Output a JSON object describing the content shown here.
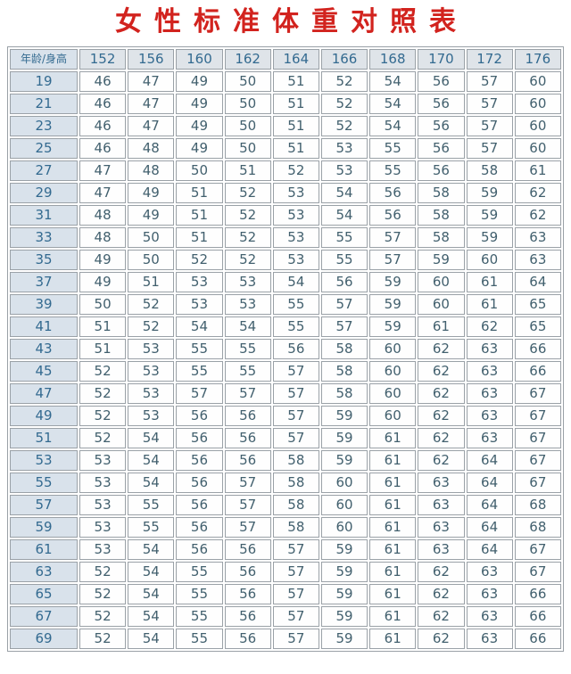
{
  "title": "女性标准体重对照表",
  "colors": {
    "page_bg": "#ffffff",
    "title": "#d2231e",
    "header_bg": "#dfe4e9",
    "age_col_bg": "#d9e2eb",
    "header_text": "#336a90",
    "cell_bg": "#fefefe",
    "cell_text": "#42606e",
    "border": "#9aa1a7"
  },
  "chart_data": {
    "type": "table",
    "title": "女性标准体重对照表",
    "corner_label": "年龄/身高",
    "x_axis_meaning": "height (cm)",
    "y_axis_meaning": "age (years)",
    "cell_meaning": "standard weight (kg)",
    "columns": [
      "152",
      "156",
      "160",
      "162",
      "164",
      "166",
      "168",
      "170",
      "172",
      "176"
    ],
    "rows": [
      {
        "age": "19",
        "values": [
          46,
          47,
          49,
          50,
          51,
          52,
          54,
          56,
          57,
          60
        ]
      },
      {
        "age": "21",
        "values": [
          46,
          47,
          49,
          50,
          51,
          52,
          54,
          56,
          57,
          60
        ]
      },
      {
        "age": "23",
        "values": [
          46,
          47,
          49,
          50,
          51,
          52,
          54,
          56,
          57,
          60
        ]
      },
      {
        "age": "25",
        "values": [
          46,
          48,
          49,
          50,
          51,
          53,
          55,
          56,
          57,
          60
        ]
      },
      {
        "age": "27",
        "values": [
          47,
          48,
          50,
          51,
          52,
          53,
          55,
          56,
          58,
          61
        ]
      },
      {
        "age": "29",
        "values": [
          47,
          49,
          51,
          52,
          53,
          54,
          56,
          58,
          59,
          62
        ]
      },
      {
        "age": "31",
        "values": [
          48,
          49,
          51,
          52,
          53,
          54,
          56,
          58,
          59,
          62
        ]
      },
      {
        "age": "33",
        "values": [
          48,
          50,
          51,
          52,
          53,
          55,
          57,
          58,
          59,
          63
        ]
      },
      {
        "age": "35",
        "values": [
          49,
          50,
          52,
          52,
          53,
          55,
          57,
          59,
          60,
          63
        ]
      },
      {
        "age": "37",
        "values": [
          49,
          51,
          53,
          53,
          54,
          56,
          59,
          60,
          61,
          64
        ]
      },
      {
        "age": "39",
        "values": [
          50,
          52,
          53,
          53,
          55,
          57,
          59,
          60,
          61,
          65
        ]
      },
      {
        "age": "41",
        "values": [
          51,
          52,
          54,
          54,
          55,
          57,
          59,
          61,
          62,
          65
        ]
      },
      {
        "age": "43",
        "values": [
          51,
          53,
          55,
          55,
          56,
          58,
          60,
          62,
          63,
          66
        ]
      },
      {
        "age": "45",
        "values": [
          52,
          53,
          55,
          55,
          57,
          58,
          60,
          62,
          63,
          66
        ]
      },
      {
        "age": "47",
        "values": [
          52,
          53,
          57,
          57,
          57,
          58,
          60,
          62,
          63,
          67
        ]
      },
      {
        "age": "49",
        "values": [
          52,
          53,
          56,
          56,
          57,
          59,
          60,
          62,
          63,
          67
        ]
      },
      {
        "age": "51",
        "values": [
          52,
          54,
          56,
          56,
          57,
          59,
          61,
          62,
          63,
          67
        ]
      },
      {
        "age": "53",
        "values": [
          53,
          54,
          56,
          56,
          58,
          59,
          61,
          62,
          64,
          67
        ]
      },
      {
        "age": "55",
        "values": [
          53,
          54,
          56,
          57,
          58,
          60,
          61,
          63,
          64,
          67
        ]
      },
      {
        "age": "57",
        "values": [
          53,
          55,
          56,
          57,
          58,
          60,
          61,
          63,
          64,
          68
        ]
      },
      {
        "age": "59",
        "values": [
          53,
          55,
          56,
          57,
          58,
          60,
          61,
          63,
          64,
          68
        ]
      },
      {
        "age": "61",
        "values": [
          53,
          54,
          56,
          56,
          57,
          59,
          61,
          63,
          64,
          67
        ]
      },
      {
        "age": "63",
        "values": [
          52,
          54,
          55,
          56,
          57,
          59,
          61,
          62,
          63,
          67
        ]
      },
      {
        "age": "65",
        "values": [
          52,
          54,
          55,
          56,
          57,
          59,
          61,
          62,
          63,
          66
        ]
      },
      {
        "age": "67",
        "values": [
          52,
          54,
          55,
          56,
          57,
          59,
          61,
          62,
          63,
          66
        ]
      },
      {
        "age": "69",
        "values": [
          52,
          54,
          55,
          56,
          57,
          59,
          61,
          62,
          63,
          66
        ]
      }
    ]
  }
}
